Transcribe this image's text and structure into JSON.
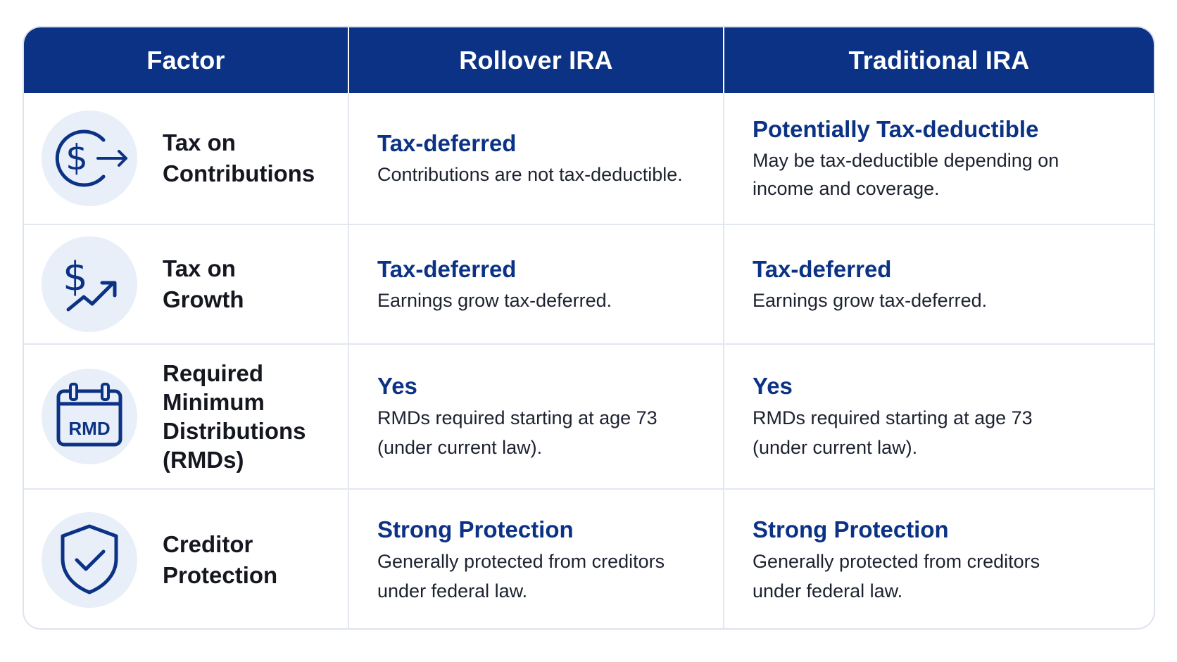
{
  "header": {
    "factor": "Factor",
    "rollover": "Rollover IRA",
    "traditional": "Traditional IRA"
  },
  "rows": [
    {
      "icon": "dollar-arrow-icon",
      "factor_line1": "Tax on",
      "factor_line2": "Contributions",
      "rollover": {
        "title": "Tax-deferred",
        "desc": "Contributions are not tax-deductible."
      },
      "traditional": {
        "title": "Potentially Tax-deductible",
        "desc_line1": "May be tax-deductible depending on",
        "desc_line2": "income and coverage."
      }
    },
    {
      "icon": "dollar-growth-chart-icon",
      "factor_line1": "Tax on",
      "factor_line2": "Growth",
      "rollover": {
        "title": "Tax-deferred",
        "desc": "Earnings grow tax-deferred."
      },
      "traditional": {
        "title": "Tax-deferred",
        "desc": "Earnings grow tax-deferred."
      }
    },
    {
      "icon": "calendar-rmd-icon",
      "icon_text": "RMD",
      "factor_line1": "Required",
      "factor_line2": "Minimum",
      "factor_line3": "Distributions",
      "factor_line4": "(RMDs)",
      "rollover": {
        "title": "Yes",
        "desc_line1": "RMDs required starting at age 73",
        "desc_line2": "(under current law)."
      },
      "traditional": {
        "title": "Yes",
        "desc_line1": "RMDs required starting at age 73",
        "desc_line2": "(under current law)."
      }
    },
    {
      "icon": "shield-check-icon",
      "factor_line1": "Creditor",
      "factor_line2": "Protection",
      "rollover": {
        "title": "Strong Protection",
        "desc_line1": "Generally protected from creditors",
        "desc_line2": "under federal law."
      },
      "traditional": {
        "title": "Strong Protection",
        "desc_line1": "Generally protected from creditors",
        "desc_line2": "under federal law."
      }
    }
  ],
  "colors": {
    "header_bg": "#0b3284",
    "accent_text": "#0b3284",
    "icon_bg": "#e8eff9",
    "icon_stroke": "#0b3284",
    "border": "#e3e8ef"
  }
}
